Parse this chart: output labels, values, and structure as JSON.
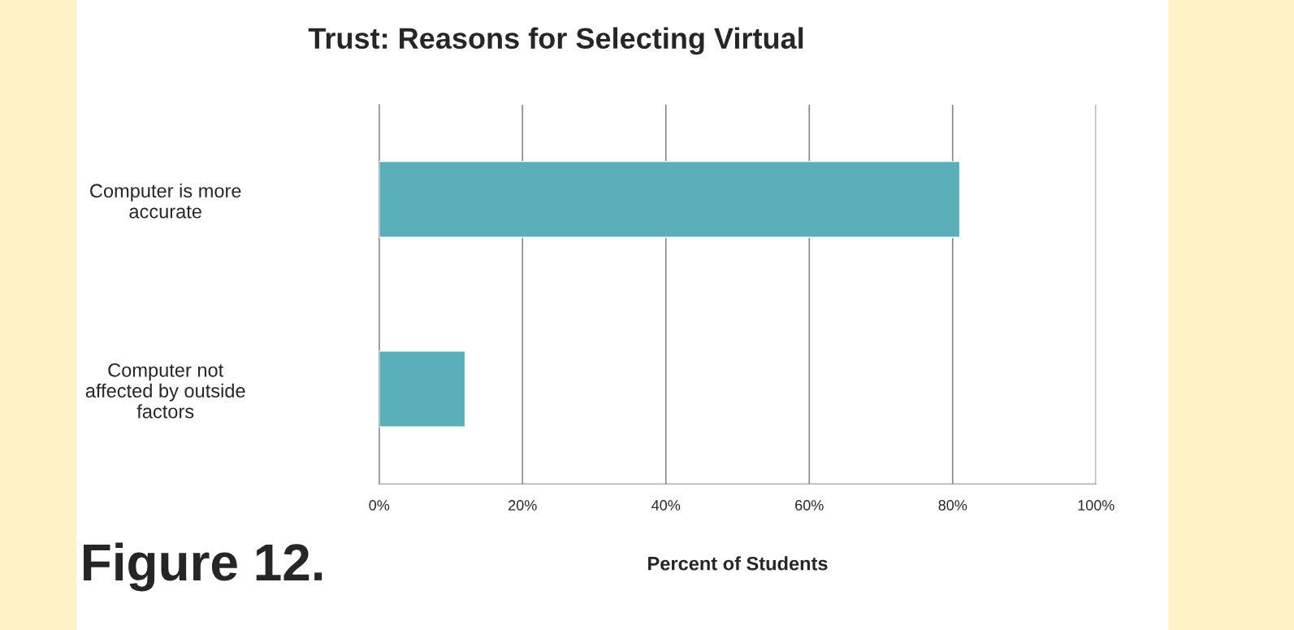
{
  "chart_data": {
    "type": "bar",
    "orientation": "horizontal",
    "title": "Trust: Reasons for Selecting Virtual",
    "xlabel": "Percent of Students",
    "categories": [
      "Computer is more\naccurate",
      "Computer not\naffected by outside\nfactors"
    ],
    "values": [
      81,
      12
    ],
    "color": "#5bafb9",
    "xlim": [
      0,
      100
    ],
    "xticks": [
      {
        "value": 0,
        "label": "0%"
      },
      {
        "value": 20,
        "label": "20%"
      },
      {
        "value": 40,
        "label": "40%"
      },
      {
        "value": 60,
        "label": "60%"
      },
      {
        "value": 80,
        "label": "80%"
      },
      {
        "value": 100,
        "label": "100%"
      }
    ],
    "grid": "x",
    "legend": false,
    "annotations": [
      "Figure 12."
    ]
  }
}
